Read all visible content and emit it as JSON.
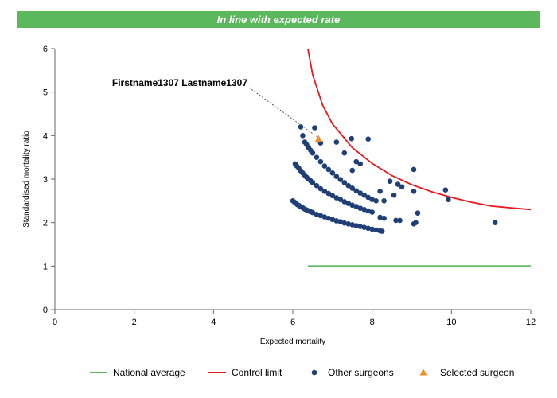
{
  "banner": {
    "text": "In line with expected rate"
  },
  "chart_data": {
    "type": "scatter",
    "title": "In line with expected rate",
    "xlabel": "Expected mortality",
    "ylabel": "Standardised mortality ratio",
    "xlim": [
      0,
      12
    ],
    "ylim": [
      0,
      6
    ],
    "xticks": [
      0,
      2,
      4,
      6,
      8,
      10,
      12
    ],
    "yticks": [
      0,
      1,
      2,
      3,
      4,
      5,
      6
    ],
    "grid": false,
    "legend_position": "bottom",
    "annotation": {
      "text": "Firstname1307 Lastname1307",
      "x": 6.65,
      "y": 3.92
    },
    "series": [
      {
        "name": "National average",
        "type": "line",
        "color": "#5cb85c",
        "points": [
          [
            6.38,
            1.0
          ],
          [
            12,
            1.0
          ]
        ]
      },
      {
        "name": "Control limit",
        "type": "line",
        "color": "#e8191c",
        "points": [
          [
            6.38,
            6.0
          ],
          [
            6.5,
            5.4
          ],
          [
            6.75,
            4.7
          ],
          [
            7.0,
            4.27
          ],
          [
            7.5,
            3.72
          ],
          [
            8.0,
            3.36
          ],
          [
            8.5,
            3.08
          ],
          [
            9.0,
            2.87
          ],
          [
            9.5,
            2.71
          ],
          [
            10.0,
            2.58
          ],
          [
            10.5,
            2.47
          ],
          [
            11.0,
            2.38
          ],
          [
            12.0,
            2.3
          ]
        ]
      },
      {
        "name": "Other surgeons",
        "type": "scatter",
        "color": "#1f3f76",
        "points": [
          [
            6.0,
            2.5
          ],
          [
            6.04,
            2.47
          ],
          [
            6.08,
            2.44
          ],
          [
            6.12,
            2.41
          ],
          [
            6.16,
            2.39
          ],
          [
            6.2,
            2.36
          ],
          [
            6.25,
            2.34
          ],
          [
            6.3,
            2.31
          ],
          [
            6.35,
            2.29
          ],
          [
            6.4,
            2.27
          ],
          [
            6.45,
            2.25
          ],
          [
            6.5,
            2.23
          ],
          [
            6.6,
            2.19
          ],
          [
            6.7,
            2.16
          ],
          [
            6.8,
            2.13
          ],
          [
            6.9,
            2.1
          ],
          [
            7.0,
            2.07
          ],
          [
            7.1,
            2.04
          ],
          [
            7.2,
            2.02
          ],
          [
            7.3,
            1.99
          ],
          [
            7.4,
            1.97
          ],
          [
            7.5,
            1.95
          ],
          [
            7.6,
            1.93
          ],
          [
            7.7,
            1.91
          ],
          [
            7.8,
            1.89
          ],
          [
            7.9,
            1.87
          ],
          [
            8.0,
            1.85
          ],
          [
            8.1,
            1.83
          ],
          [
            8.2,
            1.81
          ],
          [
            8.25,
            1.8
          ],
          [
            6.06,
            3.35
          ],
          [
            6.1,
            3.3
          ],
          [
            6.15,
            3.25
          ],
          [
            6.2,
            3.19
          ],
          [
            6.25,
            3.14
          ],
          [
            6.3,
            3.09
          ],
          [
            6.35,
            3.04
          ],
          [
            6.4,
            3.0
          ],
          [
            6.45,
            2.96
          ],
          [
            6.5,
            2.92
          ],
          [
            6.6,
            2.85
          ],
          [
            6.7,
            2.78
          ],
          [
            6.8,
            2.72
          ],
          [
            6.9,
            2.67
          ],
          [
            7.0,
            2.62
          ],
          [
            7.1,
            2.57
          ],
          [
            7.2,
            2.53
          ],
          [
            7.3,
            2.48
          ],
          [
            7.4,
            2.44
          ],
          [
            7.5,
            2.4
          ],
          [
            7.6,
            2.37
          ],
          [
            7.7,
            2.33
          ],
          [
            7.8,
            2.3
          ],
          [
            7.9,
            2.27
          ],
          [
            8.0,
            2.24
          ],
          [
            8.2,
            2.12
          ],
          [
            6.3,
            3.85
          ],
          [
            6.35,
            3.79
          ],
          [
            6.4,
            3.72
          ],
          [
            6.45,
            3.66
          ],
          [
            6.5,
            3.6
          ],
          [
            6.6,
            3.5
          ],
          [
            6.7,
            3.4
          ],
          [
            6.8,
            3.3
          ],
          [
            6.9,
            3.22
          ],
          [
            7.0,
            3.14
          ],
          [
            7.1,
            3.06
          ],
          [
            7.2,
            2.99
          ],
          [
            7.3,
            2.92
          ],
          [
            7.4,
            2.85
          ],
          [
            7.5,
            2.79
          ],
          [
            7.6,
            2.73
          ],
          [
            7.7,
            2.68
          ],
          [
            7.8,
            2.63
          ],
          [
            7.9,
            2.58
          ],
          [
            8.0,
            2.53
          ],
          [
            6.2,
            4.2
          ],
          [
            6.25,
            4.0
          ],
          [
            6.55,
            4.18
          ],
          [
            6.7,
            3.83
          ],
          [
            7.1,
            3.85
          ],
          [
            7.48,
            3.93
          ],
          [
            7.9,
            3.92
          ],
          [
            7.3,
            3.6
          ],
          [
            7.6,
            3.4
          ],
          [
            7.7,
            3.35
          ],
          [
            7.5,
            3.2
          ],
          [
            8.2,
            2.72
          ],
          [
            8.1,
            2.5
          ],
          [
            8.3,
            2.5
          ],
          [
            8.45,
            2.95
          ],
          [
            8.55,
            2.63
          ],
          [
            8.65,
            2.88
          ],
          [
            8.75,
            2.82
          ],
          [
            8.6,
            2.05
          ],
          [
            8.7,
            2.05
          ],
          [
            8.3,
            2.1
          ],
          [
            9.05,
            3.22
          ],
          [
            9.05,
            2.72
          ],
          [
            9.05,
            1.97
          ],
          [
            9.1,
            2.0
          ],
          [
            9.15,
            2.22
          ],
          [
            9.85,
            2.75
          ],
          [
            9.92,
            2.53
          ],
          [
            11.1,
            2.0
          ]
        ]
      },
      {
        "name": "Selected surgeon",
        "type": "scatter",
        "marker": "triangle",
        "color": "#f28c28",
        "points": [
          [
            6.65,
            3.92
          ]
        ]
      }
    ]
  }
}
